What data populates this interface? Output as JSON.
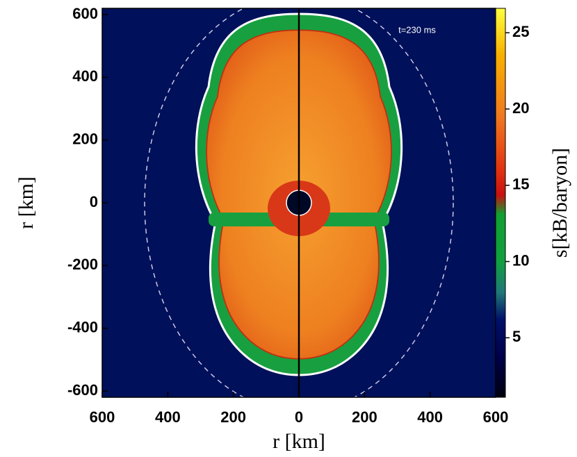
{
  "chart_data": {
    "type": "heatmap",
    "annotation": "t=230 ms",
    "xlabel": "r [km]",
    "ylabel": "r [km]",
    "colorbar_label": "s[kB/baryon]",
    "xlim": [
      -600,
      600
    ],
    "ylim": [
      -620,
      620
    ],
    "xticks": [
      {
        "value": -600,
        "label": "600"
      },
      {
        "value": -400,
        "label": "400"
      },
      {
        "value": -200,
        "label": "200"
      },
      0,
      200,
      400,
      600
    ],
    "yticks": [
      -600,
      -400,
      -200,
      0,
      200,
      400,
      600
    ],
    "clim": [
      1.1,
      26.6
    ],
    "cticks": [
      5,
      10,
      15,
      20,
      25
    ]
  }
}
